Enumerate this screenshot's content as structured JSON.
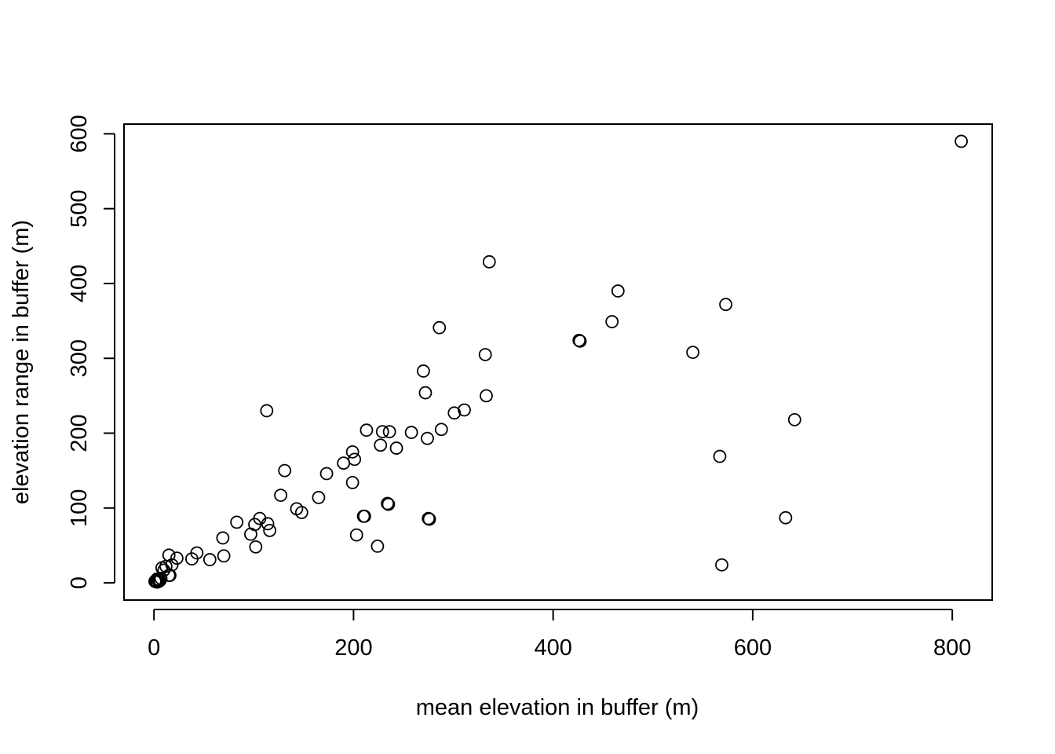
{
  "chart_data": {
    "type": "scatter",
    "title": "",
    "xlabel": "mean elevation in buffer (m)",
    "ylabel": "elevation range in buffer (m)",
    "xlim": [
      -30,
      840
    ],
    "ylim": [
      -23,
      613
    ],
    "xticks": [
      0,
      200,
      400,
      600,
      800
    ],
    "yticks": [
      0,
      100,
      200,
      300,
      400,
      500,
      600
    ],
    "grid": false,
    "marker": "open-circle",
    "colors": {
      "point": "#000000",
      "axis": "#000000",
      "background": "#ffffff"
    },
    "points": [
      {
        "x": 1,
        "y": 2
      },
      {
        "x": 2,
        "y": 3
      },
      {
        "x": 3,
        "y": 1
      },
      {
        "x": 4,
        "y": 4
      },
      {
        "x": 5,
        "y": 2
      },
      {
        "x": 3,
        "y": 5
      },
      {
        "x": 6,
        "y": 3
      },
      {
        "x": 7,
        "y": 6
      },
      {
        "x": 8,
        "y": 20
      },
      {
        "x": 10,
        "y": 17
      },
      {
        "x": 12,
        "y": 22
      },
      {
        "x": 15,
        "y": 37
      },
      {
        "x": 15,
        "y": 10
      },
      {
        "x": 16,
        "y": 10
      },
      {
        "x": 18,
        "y": 24
      },
      {
        "x": 23,
        "y": 33
      },
      {
        "x": 38,
        "y": 32
      },
      {
        "x": 43,
        "y": 40
      },
      {
        "x": 56,
        "y": 31
      },
      {
        "x": 69,
        "y": 60
      },
      {
        "x": 70,
        "y": 36
      },
      {
        "x": 83,
        "y": 81
      },
      {
        "x": 97,
        "y": 65
      },
      {
        "x": 101,
        "y": 78
      },
      {
        "x": 102,
        "y": 48
      },
      {
        "x": 106,
        "y": 86
      },
      {
        "x": 113,
        "y": 230
      },
      {
        "x": 114,
        "y": 79
      },
      {
        "x": 116,
        "y": 70
      },
      {
        "x": 127,
        "y": 117
      },
      {
        "x": 131,
        "y": 150
      },
      {
        "x": 143,
        "y": 99
      },
      {
        "x": 148,
        "y": 94
      },
      {
        "x": 165,
        "y": 114
      },
      {
        "x": 173,
        "y": 146
      },
      {
        "x": 190,
        "y": 160
      },
      {
        "x": 199,
        "y": 175
      },
      {
        "x": 199,
        "y": 134
      },
      {
        "x": 201,
        "y": 165
      },
      {
        "x": 203,
        "y": 64
      },
      {
        "x": 210,
        "y": 89
      },
      {
        "x": 211,
        "y": 89
      },
      {
        "x": 213,
        "y": 204
      },
      {
        "x": 224,
        "y": 49
      },
      {
        "x": 227,
        "y": 184
      },
      {
        "x": 229,
        "y": 202
      },
      {
        "x": 234,
        "y": 106
      },
      {
        "x": 235,
        "y": 105
      },
      {
        "x": 236,
        "y": 202
      },
      {
        "x": 243,
        "y": 180
      },
      {
        "x": 258,
        "y": 201
      },
      {
        "x": 270,
        "y": 283
      },
      {
        "x": 272,
        "y": 254
      },
      {
        "x": 274,
        "y": 193
      },
      {
        "x": 275,
        "y": 86
      },
      {
        "x": 276,
        "y": 85
      },
      {
        "x": 286,
        "y": 341
      },
      {
        "x": 288,
        "y": 205
      },
      {
        "x": 301,
        "y": 227
      },
      {
        "x": 311,
        "y": 231
      },
      {
        "x": 332,
        "y": 305
      },
      {
        "x": 333,
        "y": 250
      },
      {
        "x": 336,
        "y": 429
      },
      {
        "x": 426,
        "y": 324
      },
      {
        "x": 427,
        "y": 323
      },
      {
        "x": 459,
        "y": 349
      },
      {
        "x": 465,
        "y": 390
      },
      {
        "x": 540,
        "y": 308
      },
      {
        "x": 567,
        "y": 169
      },
      {
        "x": 569,
        "y": 24
      },
      {
        "x": 573,
        "y": 372
      },
      {
        "x": 633,
        "y": 87
      },
      {
        "x": 642,
        "y": 218
      },
      {
        "x": 809,
        "y": 590
      }
    ]
  }
}
